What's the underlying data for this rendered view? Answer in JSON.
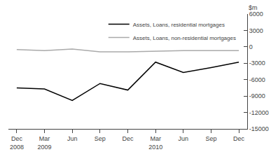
{
  "chart_data": {
    "type": "line",
    "y_label": "$m",
    "categories": [
      "Dec\n2008",
      "Mar\n2009",
      "Jun",
      "Sep",
      "Dec",
      "Mar\n2010",
      "Jun",
      "Sep",
      "Dec"
    ],
    "series": [
      {
        "name": "Assets, Loans, residential mortgages",
        "color": "#000000",
        "values": [
          -7500,
          -7700,
          -9800,
          -6700,
          -7900,
          -2800,
          -4700,
          -3800,
          -2800
        ]
      },
      {
        "name": "Assets, Loans, non-residential mortgages",
        "color": "#aaaaaa",
        "values": [
          -500,
          -700,
          -400,
          -900,
          -900,
          -800,
          -700,
          -700,
          -700
        ]
      }
    ],
    "ylim": [
      -15000,
      6000
    ],
    "yticks": [
      6000,
      3000,
      0,
      -3000,
      -6000,
      -9000,
      -12000,
      -15000
    ],
    "grid": false,
    "legend": "upper right"
  }
}
